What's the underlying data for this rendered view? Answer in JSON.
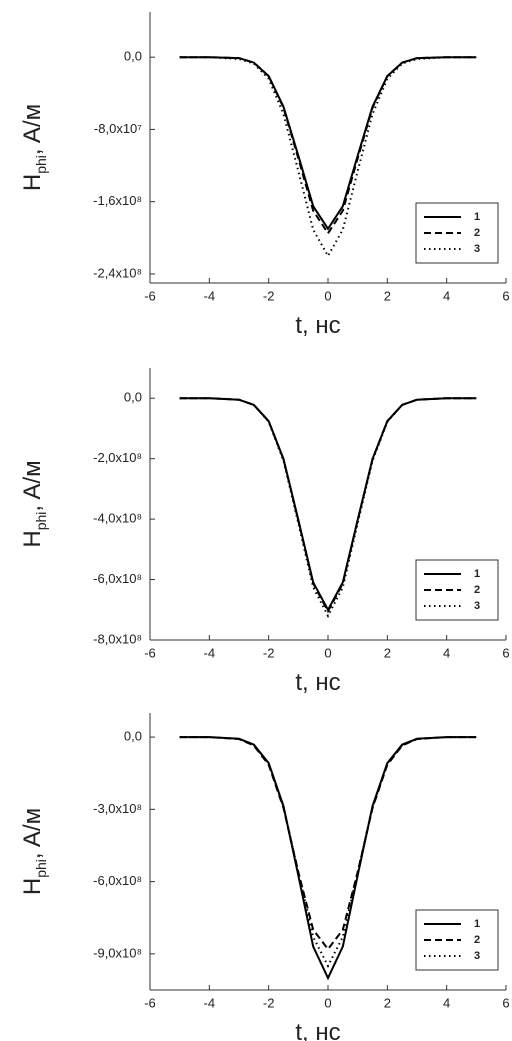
{
  "chart_data": [
    {
      "type": "line",
      "xlabel": "t, нс",
      "ylabel": {
        "text": "H",
        "sub": "phi",
        "unit": ", A/м"
      },
      "x": [
        -5,
        -4,
        -3,
        -2.5,
        -2,
        -1.5,
        -1,
        -0.5,
        0,
        0.5,
        1,
        1.5,
        2,
        2.5,
        3,
        4,
        5
      ],
      "series": [
        {
          "name": "1",
          "color": "#000000",
          "style": "solid",
          "values": [
            0,
            0,
            -1000000.0,
            -6000000.0,
            -21000000.0,
            -55000000.0,
            -109000000.0,
            -165000000.0,
            -190000000.0,
            -165000000.0,
            -109000000.0,
            -55000000.0,
            -21000000.0,
            -6000000.0,
            -1000000.0,
            0,
            0
          ]
        },
        {
          "name": "2",
          "color": "#000000",
          "style": "dash",
          "values": [
            0,
            0,
            -1000000.0,
            -6000000.0,
            -21000000.0,
            -56000000.0,
            -112000000.0,
            -170000000.0,
            -195000000.0,
            -170000000.0,
            -112000000.0,
            -56000000.0,
            -21000000.0,
            -6000000.0,
            -1000000.0,
            0,
            0
          ]
        },
        {
          "name": "3",
          "color": "#000000",
          "style": "dot",
          "values": [
            0,
            0,
            -2000000.0,
            -7000000.0,
            -24000000.0,
            -63000000.0,
            -126000000.0,
            -191000000.0,
            -220000000.0,
            -191000000.0,
            -126000000.0,
            -63000000.0,
            -24000000.0,
            -7000000.0,
            -2000000.0,
            0,
            0
          ]
        }
      ],
      "xlim": [
        -6,
        6
      ],
      "xticks": [
        -6,
        -4,
        -2,
        0,
        2,
        4,
        6
      ],
      "ylim": [
        -250000000.0,
        50000000.0
      ],
      "yticks": [
        {
          "value": 0,
          "label": "0,0"
        },
        {
          "value": -80000000.0,
          "label": "-8,0x10⁷"
        },
        {
          "value": -160000000.0,
          "label": "-1,6x10⁸"
        },
        {
          "value": -240000000.0,
          "label": "-2,4x10⁸"
        }
      ],
      "legend": "lower right"
    },
    {
      "type": "line",
      "xlabel": "t, нс",
      "ylabel": {
        "text": "H",
        "sub": "phi",
        "unit": ", A/м"
      },
      "x": [
        -5,
        -4,
        -3,
        -2.5,
        -2,
        -1.5,
        -1,
        -0.5,
        0,
        0.5,
        1,
        1.5,
        2,
        2.5,
        3,
        4,
        5
      ],
      "series": [
        {
          "name": "1",
          "color": "#000000",
          "style": "solid",
          "values": [
            0,
            0,
            -5000000.0,
            -22000000.0,
            -76000000.0,
            -201000000.0,
            -402000000.0,
            -609000000.0,
            -700000000.0,
            -609000000.0,
            -402000000.0,
            -201000000.0,
            -76000000.0,
            -22000000.0,
            -5000000.0,
            0,
            0
          ]
        },
        {
          "name": "2",
          "color": "#000000",
          "style": "dash",
          "values": [
            0,
            0,
            -5000000.0,
            -22000000.0,
            -76000000.0,
            -202000000.0,
            -405000000.0,
            -613000000.0,
            -705000000.0,
            -613000000.0,
            -405000000.0,
            -202000000.0,
            -76000000.0,
            -22000000.0,
            -5000000.0,
            0,
            0
          ]
        },
        {
          "name": "3",
          "color": "#000000",
          "style": "dot",
          "values": [
            0,
            0,
            -5000000.0,
            -22000000.0,
            -78000000.0,
            -207000000.0,
            -413000000.0,
            -626000000.0,
            -720000000.0,
            -626000000.0,
            -413000000.0,
            -207000000.0,
            -78000000.0,
            -22000000.0,
            -5000000.0,
            0,
            0
          ]
        }
      ],
      "xlim": [
        -6,
        6
      ],
      "xticks": [
        -6,
        -4,
        -2,
        0,
        2,
        4,
        6
      ],
      "ylim": [
        -800000000.0,
        100000000.0
      ],
      "yticks": [
        {
          "value": 0,
          "label": "0,0"
        },
        {
          "value": -200000000.0,
          "label": "-2,0x10⁸"
        },
        {
          "value": -400000000.0,
          "label": "-4,0x10⁸"
        },
        {
          "value": -600000000.0,
          "label": "-6,0x10⁸"
        },
        {
          "value": -800000000.0,
          "label": "-8,0x10⁸"
        }
      ],
      "legend": "lower right"
    },
    {
      "type": "line",
      "xlabel": "t, нс",
      "ylabel": {
        "text": "H",
        "sub": "phi",
        "unit": ", A/м"
      },
      "x": [
        -5,
        -4,
        -3,
        -2.5,
        -2,
        -1.5,
        -1,
        -0.5,
        0,
        0.5,
        1,
        1.5,
        2,
        2.5,
        3,
        4,
        5
      ],
      "series": [
        {
          "name": "1",
          "color": "#000000",
          "style": "solid",
          "values": [
            0,
            0,
            -7000000.0,
            -31000000.0,
            -108000000.0,
            -287000000.0,
            -574000000.0,
            -870000000.0,
            -1000000000.0,
            -870000000.0,
            -574000000.0,
            -287000000.0,
            -108000000.0,
            -31000000.0,
            -7000000.0,
            0,
            0
          ]
        },
        {
          "name": "2",
          "color": "#000000",
          "style": "dash",
          "values": [
            0,
            0,
            -8000000.0,
            -35000000.0,
            -115000000.0,
            -295000000.0,
            -560000000.0,
            -800000000.0,
            -880000000.0,
            -800000000.0,
            -560000000.0,
            -295000000.0,
            -115000000.0,
            -35000000.0,
            -8000000.0,
            0,
            0
          ]
        },
        {
          "name": "3",
          "color": "#000000",
          "style": "dot",
          "values": [
            0,
            0,
            -7000000.0,
            -33000000.0,
            -110000000.0,
            -290000000.0,
            -560000000.0,
            -830000000.0,
            -950000000.0,
            -830000000.0,
            -560000000.0,
            -290000000.0,
            -110000000.0,
            -33000000.0,
            -7000000.0,
            0,
            0
          ]
        }
      ],
      "xlim": [
        -6,
        6
      ],
      "xticks": [
        -6,
        -4,
        -2,
        0,
        2,
        4,
        6
      ],
      "ylim": [
        -1050000000.0,
        100000000.0
      ],
      "yticks": [
        {
          "value": 0,
          "label": "0,0"
        },
        {
          "value": -300000000.0,
          "label": "-3,0x10⁸"
        },
        {
          "value": -600000000.0,
          "label": "-6,0x10⁸"
        },
        {
          "value": -900000000.0,
          "label": "-9,0x10⁸"
        }
      ],
      "legend": "lower right"
    }
  ]
}
